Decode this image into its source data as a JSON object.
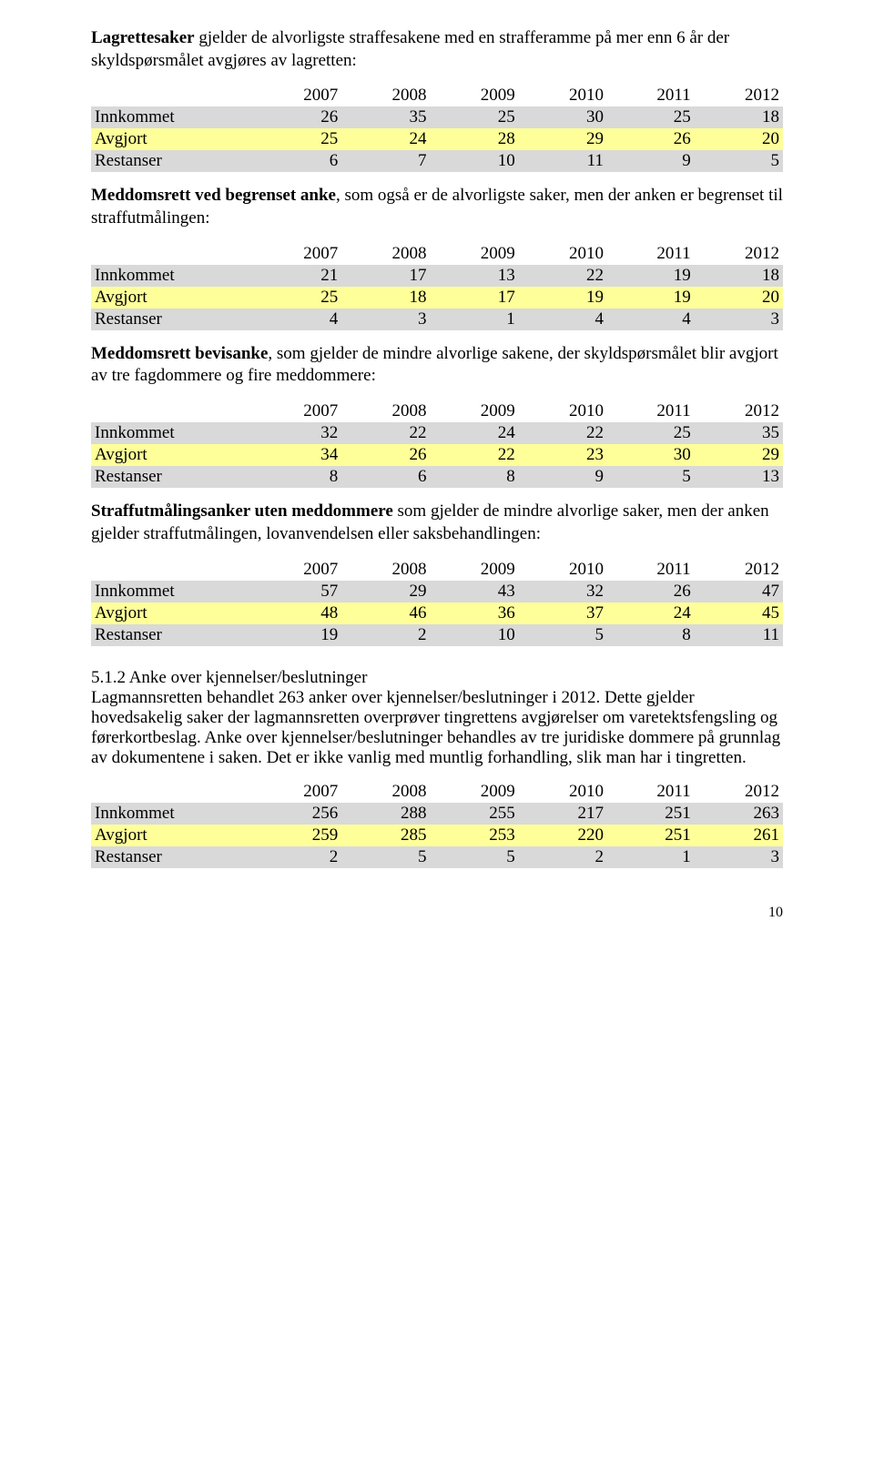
{
  "p1": {
    "bold": "Lagrettesaker",
    "rest": " gjelder de alvorligste straffesakene med en strafferamme på mer enn 6 år der skyldspørsmålet avgjøres av lagretten:"
  },
  "t1": {
    "years": [
      "2007",
      "2008",
      "2009",
      "2010",
      "2011",
      "2012"
    ],
    "rows": [
      {
        "label": "Innkommet",
        "cells": [
          "26",
          "35",
          "25",
          "30",
          "25",
          "18"
        ],
        "style": "grey"
      },
      {
        "label": "Avgjort",
        "cells": [
          "25",
          "24",
          "28",
          "29",
          "26",
          "20"
        ],
        "style": "yellow"
      },
      {
        "label": "Restanser",
        "cells": [
          "6",
          "7",
          "10",
          "11",
          "9",
          "5"
        ],
        "style": "grey"
      }
    ]
  },
  "p2": {
    "bold": "Meddomsrett ved begrenset anke",
    "rest": ", som også er de alvorligste saker, men der anken er begrenset til straffutmålingen:"
  },
  "t2": {
    "years": [
      "2007",
      "2008",
      "2009",
      "2010",
      "2011",
      "2012"
    ],
    "rows": [
      {
        "label": "Innkommet",
        "cells": [
          "21",
          "17",
          "13",
          "22",
          "19",
          "18"
        ],
        "style": "grey"
      },
      {
        "label": "Avgjort",
        "cells": [
          "25",
          "18",
          "17",
          "19",
          "19",
          "20"
        ],
        "style": "yellow"
      },
      {
        "label": "Restanser",
        "cells": [
          "4",
          "3",
          "1",
          "4",
          "4",
          "3"
        ],
        "style": "grey"
      }
    ]
  },
  "p3": {
    "bold": "Meddomsrett bevisanke",
    "rest": ", som gjelder de mindre alvorlige sakene, der skyld­spørsmålet blir avgjort av tre fagdommere og fire meddommere:"
  },
  "t3": {
    "years": [
      "2007",
      "2008",
      "2009",
      "2010",
      "2011",
      "2012"
    ],
    "rows": [
      {
        "label": "Innkommet",
        "cells": [
          "32",
          "22",
          "24",
          "22",
          "25",
          "35"
        ],
        "style": "grey"
      },
      {
        "label": "Avgjort",
        "cells": [
          "34",
          "26",
          "22",
          "23",
          "30",
          "29"
        ],
        "style": "yellow"
      },
      {
        "label": "Restanser",
        "cells": [
          "8",
          "6",
          "8",
          "9",
          "5",
          "13"
        ],
        "style": "grey"
      }
    ]
  },
  "p4": {
    "bold": "Straffutmålingsanker uten meddommere",
    "rest": " som gjelder de mindre alvorlige saker, men der anken gjelder straffutmålingen, lovanvendelsen eller saksbehandlingen:"
  },
  "t4": {
    "years": [
      "2007",
      "2008",
      "2009",
      "2010",
      "2011",
      "2012"
    ],
    "rows": [
      {
        "label": "Innkommet",
        "cells": [
          "57",
          "29",
          "43",
          "32",
          "26",
          "47"
        ],
        "style": "grey"
      },
      {
        "label": "Avgjort",
        "cells": [
          "48",
          "46",
          "36",
          "37",
          "24",
          "45"
        ],
        "style": "yellow"
      },
      {
        "label": "Restanser",
        "cells": [
          "19",
          "2",
          "10",
          "5",
          "8",
          "11"
        ],
        "style": "grey"
      }
    ]
  },
  "sec512_title": "5.1.2 Anke over kjennelser/beslutninger",
  "sec512_body": "Lagmannsretten behandlet 263 anker over kjennelser/beslutninger i 2012. Dette gjelder hovedsakelig saker der lagmannsretten overprøver tingrettens avgjørelser om varetektsfengsling og førerkortbeslag. Anke over kjennelser/beslutninger behandles av tre juridiske dommere på grunnlag av dokumentene i saken. Det er ikke vanlig med muntlig forhandling, slik man har i tingretten.",
  "t5": {
    "years": [
      "2007",
      "2008",
      "2009",
      "2010",
      "2011",
      "2012"
    ],
    "rows": [
      {
        "label": "Innkommet",
        "cells": [
          "256",
          "288",
          "255",
          "217",
          "251",
          "263"
        ],
        "style": "grey"
      },
      {
        "label": "Avgjort",
        "cells": [
          "259",
          "285",
          "253",
          "220",
          "251",
          "261"
        ],
        "style": "yellow"
      },
      {
        "label": "Restanser",
        "cells": [
          "2",
          "5",
          "5",
          "2",
          "1",
          "3"
        ],
        "style": "grey"
      }
    ]
  },
  "page_number": "10",
  "colors": {
    "grey": "#d9d9d9",
    "yellow": "#feff99",
    "text": "#000000",
    "background": "#ffffff"
  }
}
